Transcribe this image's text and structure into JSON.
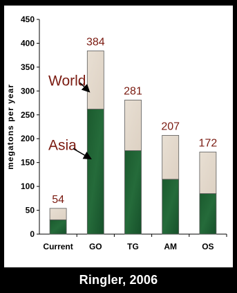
{
  "chart_data": {
    "type": "bar",
    "stacked": true,
    "categories": [
      "Current",
      "GO",
      "TG",
      "AM",
      "OS"
    ],
    "series": [
      {
        "name": "Asia",
        "values": [
          30,
          262,
          175,
          115,
          85
        ]
      },
      {
        "name": "World",
        "values": [
          24,
          122,
          106,
          92,
          87
        ]
      }
    ],
    "totals": [
      54,
      384,
      281,
      207,
      172
    ],
    "ylabel": "megatons per year",
    "xlabel": "",
    "ylim": [
      0,
      450
    ],
    "yticks": [
      0,
      50,
      100,
      150,
      200,
      250,
      300,
      350,
      400,
      450
    ],
    "annotations": [
      "World",
      "Asia"
    ],
    "grid": false,
    "legend": "none",
    "colors": {
      "Asia": "#1e5a30",
      "World": "#e4d9cc",
      "labels": "#7a1a10"
    }
  },
  "caption": "Ringler, 2006"
}
